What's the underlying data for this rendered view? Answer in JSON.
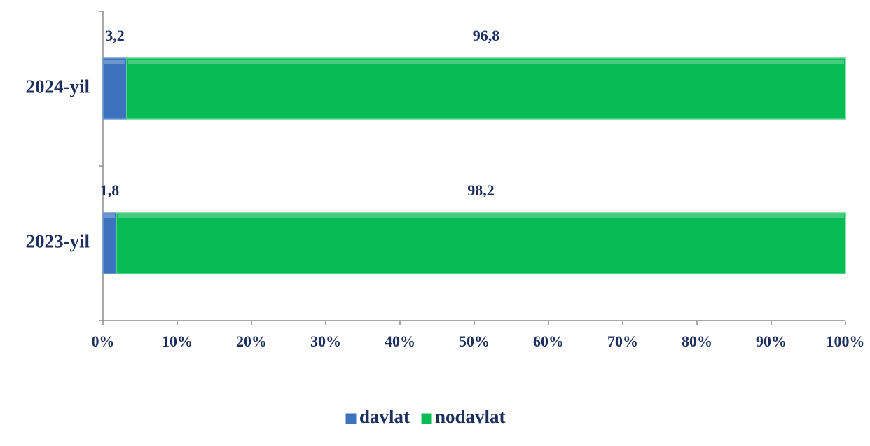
{
  "chart_data": {
    "type": "bar",
    "orientation": "horizontal",
    "stacked": true,
    "categories": [
      "2024-yil",
      "2023-yil"
    ],
    "series": [
      {
        "name": "davlat",
        "color": "#3d72bf",
        "values": [
          3.2,
          1.8
        ],
        "value_labels": [
          "3,2",
          "1,8"
        ]
      },
      {
        "name": "nodavlat",
        "color": "#07bb55",
        "values": [
          96.8,
          98.2
        ],
        "value_labels": [
          "96,8",
          "98,2"
        ]
      }
    ],
    "xlim": [
      0,
      100
    ],
    "xticks": [
      {
        "value": 0,
        "label": "0%"
      },
      {
        "value": 10,
        "label": "10%"
      },
      {
        "value": 20,
        "label": "20%"
      },
      {
        "value": 30,
        "label": "30%"
      },
      {
        "value": 40,
        "label": "40%"
      },
      {
        "value": 50,
        "label": "50%"
      },
      {
        "value": 60,
        "label": "60%"
      },
      {
        "value": 70,
        "label": "70%"
      },
      {
        "value": 80,
        "label": "80%"
      },
      {
        "value": 90,
        "label": "90%"
      },
      {
        "value": 100,
        "label": "100%"
      }
    ],
    "legend": "bottom"
  }
}
